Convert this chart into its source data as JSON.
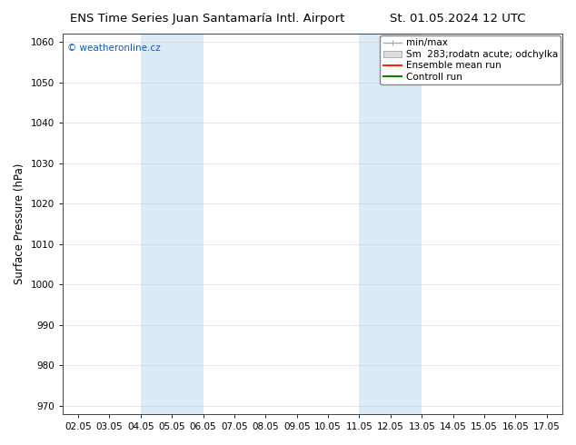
{
  "title_left": "ENS Time Series Juan Santamaría Intl. Airport",
  "title_right": "St. 01.05.2024 12 UTC",
  "ylabel": "Surface Pressure (hPa)",
  "ylim": [
    968,
    1062
  ],
  "yticks": [
    970,
    980,
    990,
    1000,
    1010,
    1020,
    1030,
    1040,
    1050,
    1060
  ],
  "xtick_labels": [
    "02.05",
    "03.05",
    "04.05",
    "05.05",
    "06.05",
    "07.05",
    "08.05",
    "09.05",
    "10.05",
    "11.05",
    "12.05",
    "13.05",
    "14.05",
    "15.05",
    "16.05",
    "17.05"
  ],
  "shaded_bands": [
    {
      "xstart": 2,
      "xend": 4
    },
    {
      "xstart": 9,
      "xend": 11
    }
  ],
  "band_color": "#daeaf6",
  "background_color": "#ffffff",
  "watermark": "© weatheronline.cz",
  "watermark_color": "#1155bb",
  "legend_labels": [
    "min/max",
    "Sm  283;rodatn acute; odchylka",
    "Ensemble mean run",
    "Controll run"
  ],
  "legend_line_colors": [
    "#aaaaaa",
    "#cccccc",
    "#ff2200",
    "#008800"
  ],
  "title_fontsize": 9.5,
  "tick_fontsize": 7.5,
  "ylabel_fontsize": 8.5,
  "grid_color": "#bbbbbb",
  "grid_alpha": 0.5,
  "legend_fontsize": 7.5
}
